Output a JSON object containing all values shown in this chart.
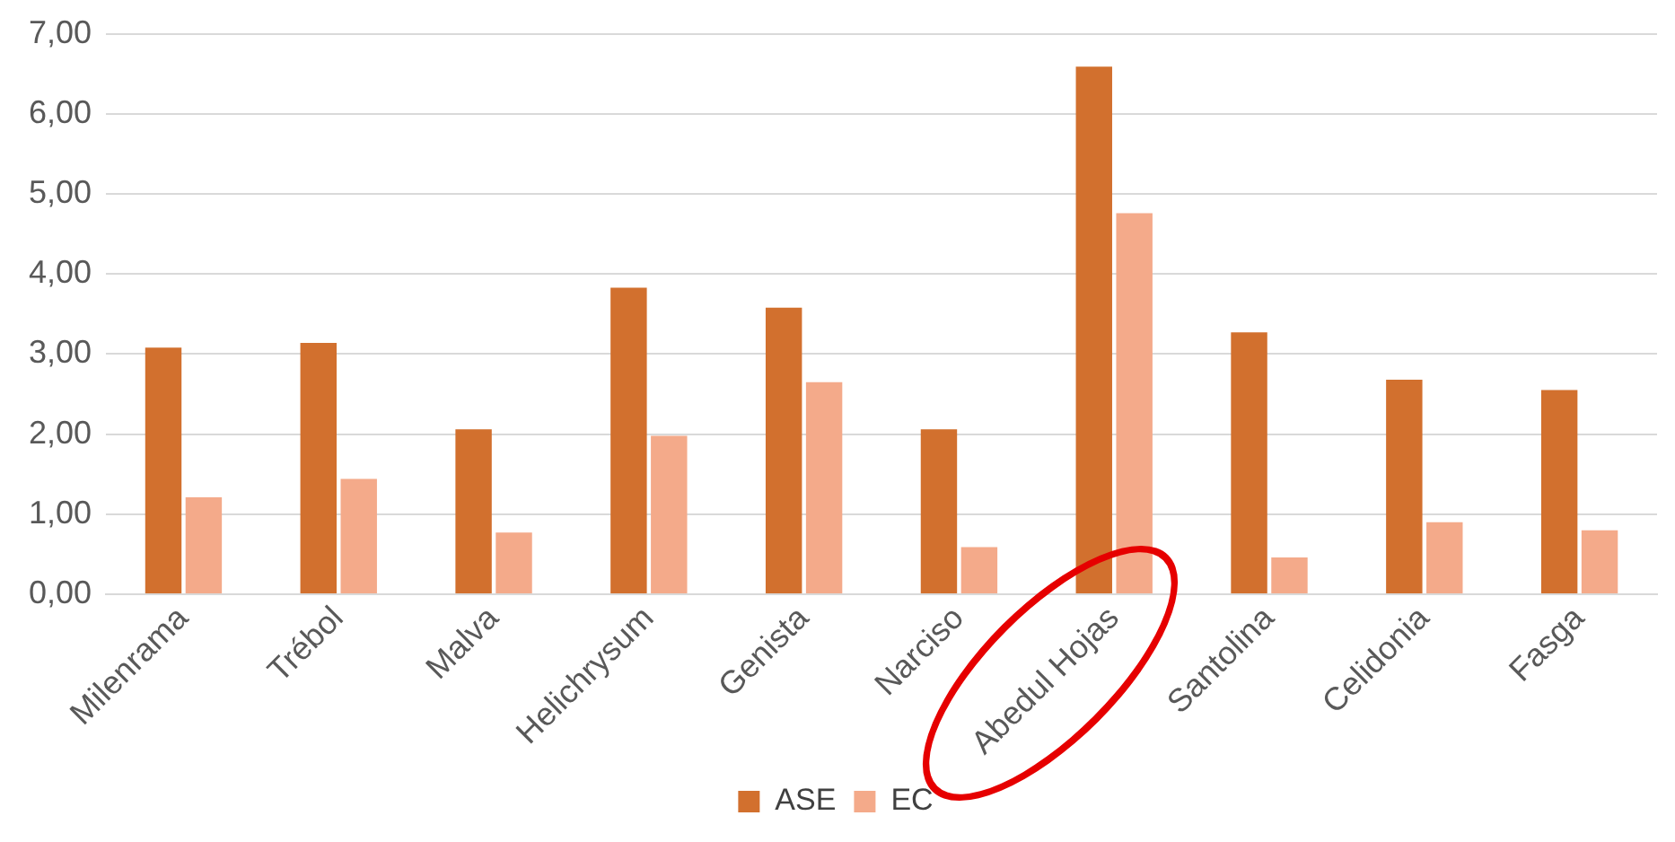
{
  "chart_data": {
    "type": "bar",
    "categories": [
      "Milenrama",
      "Trébol",
      "Malva",
      "Helichrysum",
      "Genista",
      "Narciso",
      "Abedul Hojas",
      "Santolina",
      "Celidonia",
      "Fasga"
    ],
    "series": [
      {
        "name": "ASE",
        "color": "#d2702e",
        "values": [
          3.08,
          3.14,
          2.06,
          3.83,
          3.58,
          2.06,
          6.59,
          3.27,
          2.68,
          2.55
        ]
      },
      {
        "name": "EC",
        "color": "#f4aa8a",
        "values": [
          1.21,
          1.44,
          0.77,
          1.98,
          2.65,
          0.59,
          4.76,
          0.46,
          0.9,
          0.8
        ]
      }
    ],
    "ylim": [
      0,
      7
    ],
    "yticks": [
      {
        "value": 0,
        "label": "0,00"
      },
      {
        "value": 1,
        "label": "1,00"
      },
      {
        "value": 2,
        "label": "2,00"
      },
      {
        "value": 3,
        "label": "3,00"
      },
      {
        "value": 4,
        "label": "4,00"
      },
      {
        "value": 5,
        "label": "5,00"
      },
      {
        "value": 6,
        "label": "6,00"
      },
      {
        "value": 7,
        "label": "7,00"
      }
    ],
    "grid": "y",
    "legend": "bottom"
  }
}
